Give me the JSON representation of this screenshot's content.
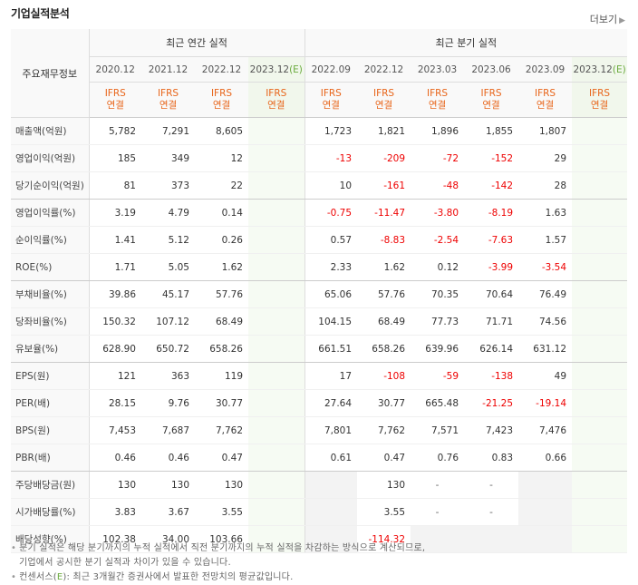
{
  "title": "기업실적분석",
  "more_label": "더보기",
  "header": {
    "corner": "주요재무정보",
    "annual_group": "최근 연간 실적",
    "quarter_group": "최근 분기 실적",
    "annual_periods": [
      "2020.12",
      "2021.12",
      "2022.12",
      "2023.12"
    ],
    "quarter_periods": [
      "2022.09",
      "2022.12",
      "2023.03",
      "2023.06",
      "2023.09",
      "2023.12"
    ],
    "estimate_mark": "(E)",
    "ifrs_label": "IFRS",
    "consolidated_label": "연결"
  },
  "rows": [
    {
      "label": "매출액(억원)",
      "annual": [
        "5,782",
        "7,291",
        "8,605",
        ""
      ],
      "quarter": [
        "1,723",
        "1,821",
        "1,896",
        "1,855",
        "1,807",
        ""
      ]
    },
    {
      "label": "영업이익(억원)",
      "annual": [
        "185",
        "349",
        "12",
        ""
      ],
      "quarter": [
        "-13",
        "-209",
        "-72",
        "-152",
        "29",
        ""
      ]
    },
    {
      "label": "당기순이익(억원)",
      "annual": [
        "81",
        "373",
        "22",
        ""
      ],
      "quarter": [
        "10",
        "-161",
        "-48",
        "-142",
        "28",
        ""
      ]
    },
    {
      "label": "영업이익률(%)",
      "annual": [
        "3.19",
        "4.79",
        "0.14",
        ""
      ],
      "quarter": [
        "-0.75",
        "-11.47",
        "-3.80",
        "-8.19",
        "1.63",
        ""
      ]
    },
    {
      "label": "순이익률(%)",
      "annual": [
        "1.41",
        "5.12",
        "0.26",
        ""
      ],
      "quarter": [
        "0.57",
        "-8.83",
        "-2.54",
        "-7.63",
        "1.57",
        ""
      ]
    },
    {
      "label": "ROE(%)",
      "annual": [
        "1.71",
        "5.05",
        "1.62",
        ""
      ],
      "quarter": [
        "2.33",
        "1.62",
        "0.12",
        "-3.99",
        "-3.54",
        ""
      ]
    },
    {
      "label": "부채비율(%)",
      "annual": [
        "39.86",
        "45.17",
        "57.76",
        ""
      ],
      "quarter": [
        "65.06",
        "57.76",
        "70.35",
        "70.64",
        "76.49",
        ""
      ]
    },
    {
      "label": "당좌비율(%)",
      "annual": [
        "150.32",
        "107.12",
        "68.49",
        ""
      ],
      "quarter": [
        "104.15",
        "68.49",
        "77.73",
        "71.71",
        "74.56",
        ""
      ]
    },
    {
      "label": "유보율(%)",
      "annual": [
        "628.90",
        "650.72",
        "658.26",
        ""
      ],
      "quarter": [
        "661.51",
        "658.26",
        "639.96",
        "626.14",
        "631.12",
        ""
      ]
    },
    {
      "label": "EPS(원)",
      "annual": [
        "121",
        "363",
        "119",
        ""
      ],
      "quarter": [
        "17",
        "-108",
        "-59",
        "-138",
        "49",
        ""
      ]
    },
    {
      "label": "PER(배)",
      "annual": [
        "28.15",
        "9.76",
        "30.77",
        ""
      ],
      "quarter": [
        "27.64",
        "30.77",
        "665.48",
        "-21.25",
        "-19.14",
        ""
      ]
    },
    {
      "label": "BPS(원)",
      "annual": [
        "7,453",
        "7,687",
        "7,762",
        ""
      ],
      "quarter": [
        "7,801",
        "7,762",
        "7,571",
        "7,423",
        "7,476",
        ""
      ]
    },
    {
      "label": "PBR(배)",
      "annual": [
        "0.46",
        "0.46",
        "0.47",
        ""
      ],
      "quarter": [
        "0.61",
        "0.47",
        "0.76",
        "0.83",
        "0.66",
        ""
      ]
    },
    {
      "label": "주당배당금(원)",
      "annual": [
        "130",
        "130",
        "130",
        ""
      ],
      "quarter": [
        "",
        "130",
        "-",
        "-",
        "",
        ""
      ]
    },
    {
      "label": "시가배당률(%)",
      "annual": [
        "3.83",
        "3.67",
        "3.55",
        ""
      ],
      "quarter": [
        "",
        "3.55",
        "-",
        "-",
        "",
        ""
      ]
    },
    {
      "label": "배당성향(%)",
      "annual": [
        "102.38",
        "34.00",
        "103.66",
        ""
      ],
      "quarter": [
        "",
        "-114.32",
        "",
        "",
        "",
        ""
      ]
    }
  ],
  "notes": {
    "line1": "분기 실적은 해당 분기까지의 누적 실적에서 직전 분기까지의 누적 실적을 차감하는 방식으로 계산되므로,",
    "line2": "기업에서 공시한 분기 실적과 차이가 있을 수 있습니다.",
    "line3_prefix": "컨센서스",
    "line3_rest": ": 최근 3개월간 증권사에서 발표한 전망치의 평균값입니다."
  },
  "colors": {
    "negative": "#e00000",
    "ifrs": "#e8651a",
    "estimate": "#6bab3e",
    "estimate_bg": "#f6fbf3",
    "gray_cell": "#f3f3f3"
  }
}
